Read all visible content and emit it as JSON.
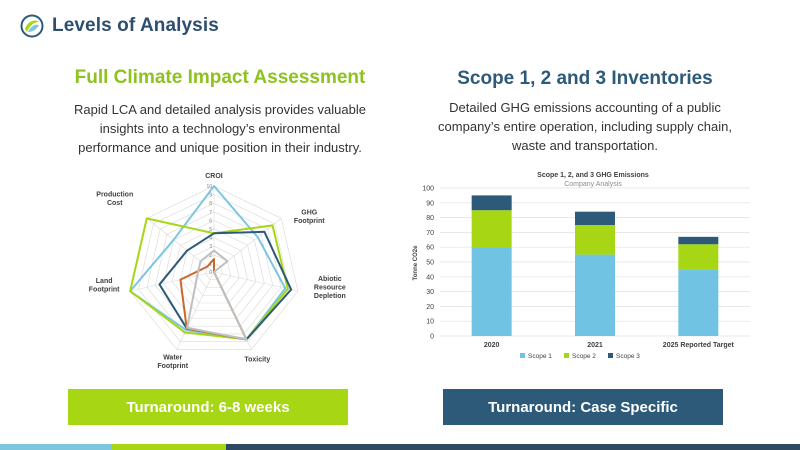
{
  "brand": {
    "name": "Levels of Analysis",
    "icon": "swirl-logo-icon"
  },
  "colors": {
    "green": "#a6d614",
    "dark_blue": "#2d5a78",
    "light_blue": "#7dc6e0",
    "brown": "#c8692a",
    "gray": "#bfbfbf",
    "dark_navy": "#2e4a63"
  },
  "left": {
    "title": "Full Climate Impact Assessment",
    "description_lines": [
      "Rapid LCA and detailed analysis provides valuable",
      "insights into a technology’s environmental",
      "performance and unique position in their industry."
    ],
    "banner": "Turnaround: 6-8 weeks"
  },
  "right": {
    "title": "Scope 1, 2 and 3 Inventories",
    "description_lines": [
      "Detailed GHG emissions accounting of a public",
      "company’s entire operation, including supply chain,",
      "waste and transportation."
    ],
    "banner": "Turnaround: Case Specific"
  },
  "chart_data": [
    {
      "type": "radar",
      "axes": [
        [
          "CROI"
        ],
        [
          "GHG",
          "Footprint"
        ],
        [
          "Abiotic",
          "Resource",
          "Depletion"
        ],
        [
          "Toxicity"
        ],
        [
          "Water",
          "Footprint"
        ],
        [
          "Land",
          "Footprint"
        ],
        [
          "Production",
          "Cost"
        ]
      ],
      "range": [
        0,
        10
      ],
      "tick_labels": [
        "0",
        "1",
        "2",
        "3",
        "4",
        "5",
        "6",
        "7",
        "8",
        "9",
        "10"
      ],
      "series": [
        {
          "color": "#7dc6e0",
          "values": [
            10,
            6.5,
            8.5,
            8.7,
            7.5,
            10,
            6
          ]
        },
        {
          "color": "#a6d614",
          "values": [
            4.5,
            8.7,
            8.8,
            8.7,
            7.8,
            10,
            10
          ]
        },
        {
          "color": "#2d5a78",
          "values": [
            4.5,
            7.5,
            9.2,
            8.7,
            7.3,
            6.5,
            4
          ]
        },
        {
          "color": "#c8692a",
          "values": [
            1.5,
            0,
            0,
            8.7,
            7.3,
            4,
            1
          ]
        },
        {
          "color": "#bfbfbf",
          "values": [
            2.5,
            2,
            0,
            8.7,
            7.2,
            2,
            2
          ]
        }
      ]
    },
    {
      "type": "bar",
      "stacked": true,
      "title": "Scope 1, 2, and 3 GHG Emissions",
      "subtitle": "Company Analysis",
      "ylabel": "Tonne CO2e",
      "ylim": [
        0,
        100
      ],
      "yticks": [
        0,
        10,
        20,
        30,
        40,
        50,
        60,
        70,
        80,
        90,
        100
      ],
      "categories": [
        "2020",
        "2021",
        "2025 Reported Target"
      ],
      "series": [
        {
          "name": "Scope 1",
          "color": "#70c3e3",
          "values": [
            60,
            55,
            45
          ]
        },
        {
          "name": "Scope 2",
          "color": "#a6d614",
          "values": [
            25,
            20,
            17
          ]
        },
        {
          "name": "Scope 3",
          "color": "#2d5a78",
          "values": [
            10,
            9,
            5
          ]
        }
      ],
      "grid": true,
      "legend": "bottom"
    }
  ]
}
